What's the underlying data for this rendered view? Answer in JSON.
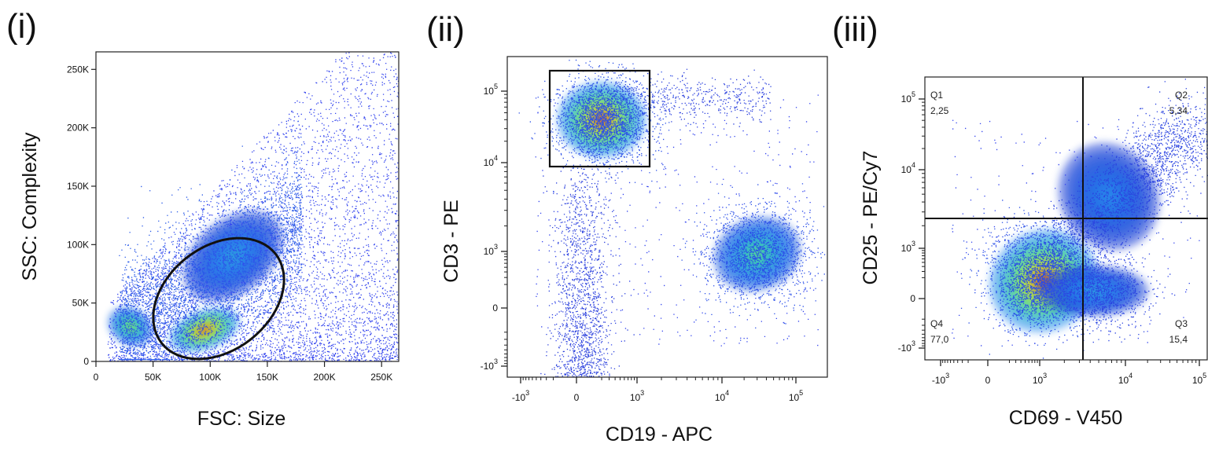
{
  "chart_data": [
    {
      "type": "scatter",
      "panel_label": "(i)",
      "xlabel": "FSC: Size",
      "ylabel": "SSC: Complexity",
      "xlim": [
        0,
        265000
      ],
      "ylim": [
        0,
        265000
      ],
      "x_ticks": [
        {
          "value": 0,
          "label": "0"
        },
        {
          "value": 50000,
          "label": "50K"
        },
        {
          "value": 100000,
          "label": "100K"
        },
        {
          "value": 150000,
          "label": "150K"
        },
        {
          "value": 200000,
          "label": "200K"
        },
        {
          "value": 250000,
          "label": "250K"
        }
      ],
      "y_ticks": [
        {
          "value": 0,
          "label": "0"
        },
        {
          "value": 50000,
          "label": "50K"
        },
        {
          "value": 100000,
          "label": "100K"
        },
        {
          "value": 150000,
          "label": "150K"
        },
        {
          "value": 200000,
          "label": "200K"
        },
        {
          "value": 250000,
          "label": "250K"
        }
      ],
      "populations": [
        {
          "center": [
            30000,
            30000
          ],
          "spread": [
            12000,
            14000
          ],
          "density": "high"
        },
        {
          "center": [
            95000,
            27000
          ],
          "spread": [
            20000,
            9000
          ],
          "density": "peak"
        },
        {
          "center": [
            120000,
            90000
          ],
          "spread": [
            55000,
            45000
          ],
          "density": "low"
        }
      ],
      "gates": [
        {
          "shape": "ellipse",
          "center": [
            115000,
            65000
          ],
          "rx": 55000,
          "ry": 34000,
          "rotation_deg": -38
        }
      ]
    },
    {
      "type": "scatter",
      "panel_label": "(ii)",
      "xlabel": "CD19 - APC",
      "ylabel": "CD3 - PE",
      "axis_scale": "biexponential",
      "x_ticks": [
        {
          "value": -1000,
          "base": "-10",
          "exp": "3"
        },
        {
          "value": 0,
          "base": "0",
          "exp": ""
        },
        {
          "value": 1000,
          "base": "10",
          "exp": "3"
        },
        {
          "value": 10000,
          "base": "10",
          "exp": "4"
        },
        {
          "value": 100000,
          "base": "10",
          "exp": "5"
        }
      ],
      "y_ticks": [
        {
          "value": -1000,
          "base": "-10",
          "exp": "3"
        },
        {
          "value": 0,
          "base": "0",
          "exp": ""
        },
        {
          "value": 1000,
          "base": "10",
          "exp": "3"
        },
        {
          "value": 10000,
          "base": "10",
          "exp": "4"
        },
        {
          "value": 100000,
          "base": "10",
          "exp": "5"
        }
      ],
      "populations": [
        {
          "center": [
            200,
            40000
          ],
          "density": "peak"
        },
        {
          "center": [
            30000,
            900
          ],
          "density": "high"
        }
      ],
      "gates": [
        {
          "shape": "rectangle",
          "x_range": [
            -500,
            1500
          ],
          "y_range": [
            9000,
            170000
          ]
        }
      ]
    },
    {
      "type": "scatter",
      "panel_label": "(iii)",
      "xlabel": "CD69 - V450",
      "ylabel": "CD25 - PE/Cy7",
      "axis_scale": "biexponential",
      "x_ticks": [
        {
          "value": -1000,
          "base": "-10",
          "exp": "3"
        },
        {
          "value": 0,
          "base": "0",
          "exp": ""
        },
        {
          "value": 1000,
          "base": "10",
          "exp": "3"
        },
        {
          "value": 10000,
          "base": "10",
          "exp": "4"
        },
        {
          "value": 100000,
          "base": "10",
          "exp": "5"
        }
      ],
      "y_ticks": [
        {
          "value": -1000,
          "base": "-10",
          "exp": "3"
        },
        {
          "value": 0,
          "base": "0",
          "exp": ""
        },
        {
          "value": 1000,
          "base": "10",
          "exp": "3"
        },
        {
          "value": 10000,
          "base": "10",
          "exp": "4"
        },
        {
          "value": 100000,
          "base": "10",
          "exp": "5"
        }
      ],
      "populations": [
        {
          "center": [
            900,
            200
          ],
          "density": "peak"
        },
        {
          "center": [
            5000,
            3000
          ],
          "density": "low"
        }
      ],
      "quadrant_gate": {
        "x": 3000,
        "y": 2000
      },
      "quadrants": [
        {
          "id": "Q1",
          "value": "2,25",
          "position": "top-left"
        },
        {
          "id": "Q2",
          "value": "5,34",
          "position": "top-right"
        },
        {
          "id": "Q3",
          "value": "15,4",
          "position": "bottom-right"
        },
        {
          "id": "Q4",
          "value": "77,0",
          "position": "bottom-left"
        }
      ]
    }
  ]
}
